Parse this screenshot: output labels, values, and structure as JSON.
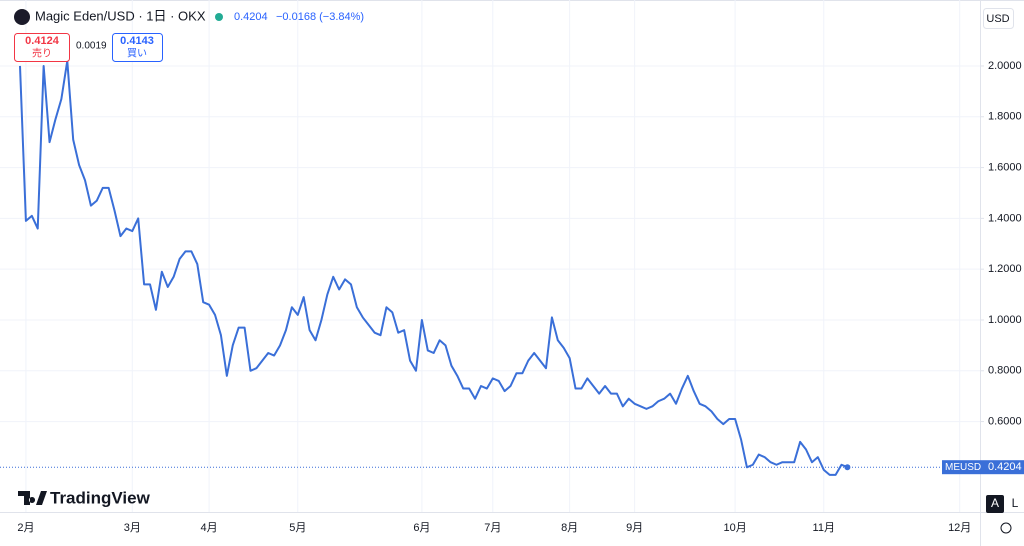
{
  "chart_data": {
    "type": "line",
    "symbol_title": "Magic Eden/USD · 1日 · OKX",
    "last_price": 0.4204,
    "change": "−0.0168 (−3.84%)",
    "sell": {
      "price": 0.4124,
      "label": "売り"
    },
    "spread": 0.0019,
    "buy": {
      "price": 0.4143,
      "label": "買い"
    },
    "currency": "USD",
    "symbol": "MEUSD",
    "brand": "TradingView",
    "buttons": [
      "A",
      "L"
    ],
    "grid": true,
    "ylim": [
      0.244,
      2.24
    ],
    "yticks": [
      {
        "value": 0.6,
        "label": "0.6000"
      },
      {
        "value": 0.8,
        "label": "0.8000"
      },
      {
        "value": 1.0,
        "label": "1.0000"
      },
      {
        "value": 1.2,
        "label": "1.2000"
      },
      {
        "value": 1.4,
        "label": "1.4000"
      },
      {
        "value": 1.6,
        "label": "1.6000"
      },
      {
        "value": 1.8,
        "label": "1.8000"
      },
      {
        "value": 2.0,
        "label": "2.0000"
      }
    ],
    "categories": [
      null,
      "2月",
      null,
      null,
      null,
      null,
      null,
      null,
      null,
      null,
      null,
      null,
      null,
      null,
      null,
      null,
      null,
      null,
      null,
      "3月",
      null,
      null,
      null,
      null,
      null,
      null,
      null,
      null,
      null,
      null,
      null,
      null,
      "4月",
      null,
      null,
      null,
      null,
      null,
      null,
      null,
      null,
      null,
      null,
      null,
      null,
      null,
      null,
      "5月",
      null,
      null,
      null,
      null,
      null,
      null,
      null,
      null,
      null,
      null,
      null,
      null,
      null,
      null,
      null,
      null,
      null,
      null,
      null,
      null,
      "6月",
      null,
      null,
      null,
      null,
      null,
      null,
      null,
      null,
      null,
      null,
      null,
      "7月",
      null,
      null,
      null,
      null,
      null,
      null,
      null,
      null,
      null,
      null,
      null,
      null,
      "8月",
      null,
      null,
      null,
      null,
      null,
      null,
      null,
      null,
      null,
      null,
      "9月",
      null,
      null,
      null,
      null,
      null,
      null,
      null,
      null,
      null,
      null,
      null,
      null,
      null,
      null,
      null,
      null,
      "10月",
      null,
      null,
      null,
      null,
      null,
      null,
      null,
      null,
      null,
      null,
      null,
      null,
      null,
      null,
      "11月",
      null,
      null,
      null,
      null,
      null,
      null,
      null,
      null,
      null,
      null,
      null,
      null,
      null,
      null,
      null,
      null,
      null,
      null,
      null,
      null,
      null,
      null,
      "12月",
      null,
      null,
      null
    ],
    "series": [
      {
        "name": "MEUSD",
        "color": "#3a6fd8",
        "values": [
          2.0,
          1.39,
          1.41,
          1.36,
          2.0,
          1.7,
          1.79,
          1.87,
          2.02,
          1.71,
          1.61,
          1.55,
          1.45,
          1.47,
          1.52,
          1.52,
          1.43,
          1.33,
          1.36,
          1.35,
          1.4,
          1.14,
          1.14,
          1.04,
          1.19,
          1.13,
          1.17,
          1.24,
          1.27,
          1.27,
          1.22,
          1.07,
          1.06,
          1.02,
          0.94,
          0.78,
          0.9,
          0.97,
          0.97,
          0.8,
          0.81,
          0.84,
          0.87,
          0.86,
          0.9,
          0.96,
          1.05,
          1.02,
          1.09,
          0.96,
          0.92,
          1.0,
          1.1,
          1.17,
          1.12,
          1.16,
          1.14,
          1.05,
          1.01,
          0.98,
          0.95,
          0.94,
          1.05,
          1.03,
          0.95,
          0.96,
          0.84,
          0.8,
          1.0,
          0.88,
          0.87,
          0.92,
          0.9,
          0.82,
          0.78,
          0.73,
          0.73,
          0.69,
          0.74,
          0.73,
          0.77,
          0.76,
          0.72,
          0.74,
          0.79,
          0.79,
          0.84,
          0.87,
          0.84,
          0.81,
          1.01,
          0.92,
          0.89,
          0.85,
          0.73,
          0.73,
          0.77,
          0.74,
          0.71,
          0.74,
          0.71,
          0.71,
          0.66,
          0.69,
          0.67,
          0.66,
          0.65,
          0.66,
          0.68,
          0.69,
          0.71,
          0.67,
          0.73,
          0.78,
          0.72,
          0.67,
          0.66,
          0.64,
          0.61,
          0.59,
          0.61,
          0.61,
          0.53,
          0.42,
          0.43,
          0.47,
          0.46,
          0.44,
          0.43,
          0.44,
          0.44,
          0.44,
          0.52,
          0.49,
          0.44,
          0.46,
          0.41,
          0.39,
          0.39,
          0.43,
          0.4204,
          null,
          null,
          null,
          null,
          null,
          null,
          null,
          null,
          null,
          null,
          null,
          null,
          null,
          null,
          null,
          null,
          null,
          null,
          null,
          null,
          null,
          null
        ]
      }
    ]
  }
}
